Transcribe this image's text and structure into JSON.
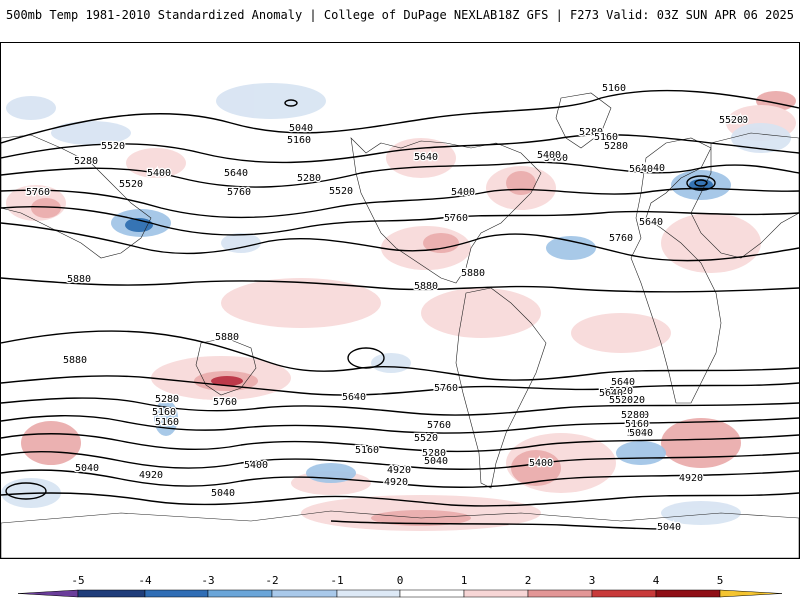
{
  "header": {
    "title_left": "500mb Temp 1981-2010 Standardized Anomaly | College of DuPage NEXLAB",
    "title_right": "18Z GFS | F273 Valid: 03Z SUN APR 06 2025"
  },
  "map": {
    "height_unit": "dam/m contours",
    "contour_labels": [
      "5160",
      "5040",
      "5520",
      "5040",
      "5160",
      "5280",
      "5400",
      "5640",
      "5160",
      "5280",
      "5400",
      "5640",
      "5280",
      "5520",
      "5760",
      "5640",
      "5280",
      "5400",
      "5520",
      "5400",
      "5760",
      "5640",
      "5760",
      "5520",
      "5760",
      "5640",
      "5880",
      "5880",
      "5880",
      "5880",
      "5880",
      "5760",
      "5640",
      "5760",
      "5640",
      "5520",
      "5280",
      "5160",
      "5520",
      "5280",
      "5160",
      "5040",
      "5400",
      "5520",
      "5160",
      "5280",
      "5040",
      "4920",
      "5040",
      "4920",
      "5400",
      "5040",
      "4920",
      "5040",
      "5760",
      "5640",
      "5520",
      "5280",
      "5160",
      "5040",
      "4920",
      "5040"
    ],
    "anomaly_colors": {
      "strong_positive": "#b2182b",
      "positive": "#e8a3a3",
      "weak_positive": "#f7d6d6",
      "weak_negative": "#d6e3f2",
      "negative": "#9ec3e6",
      "strong_negative": "#2166ac"
    }
  },
  "colorbar": {
    "ticks": [
      "-5",
      "-4",
      "-3",
      "-2",
      "-1",
      "0",
      "1",
      "2",
      "3",
      "4",
      "5"
    ],
    "colors": [
      "#6a3d9a",
      "#1f3d7a",
      "#2f6db5",
      "#6aa5d8",
      "#a9c9ea",
      "#dde9f6",
      "#ffffff",
      "#f7d6d6",
      "#e29696",
      "#c83a3a",
      "#8f0f16",
      "#f4c430"
    ]
  }
}
